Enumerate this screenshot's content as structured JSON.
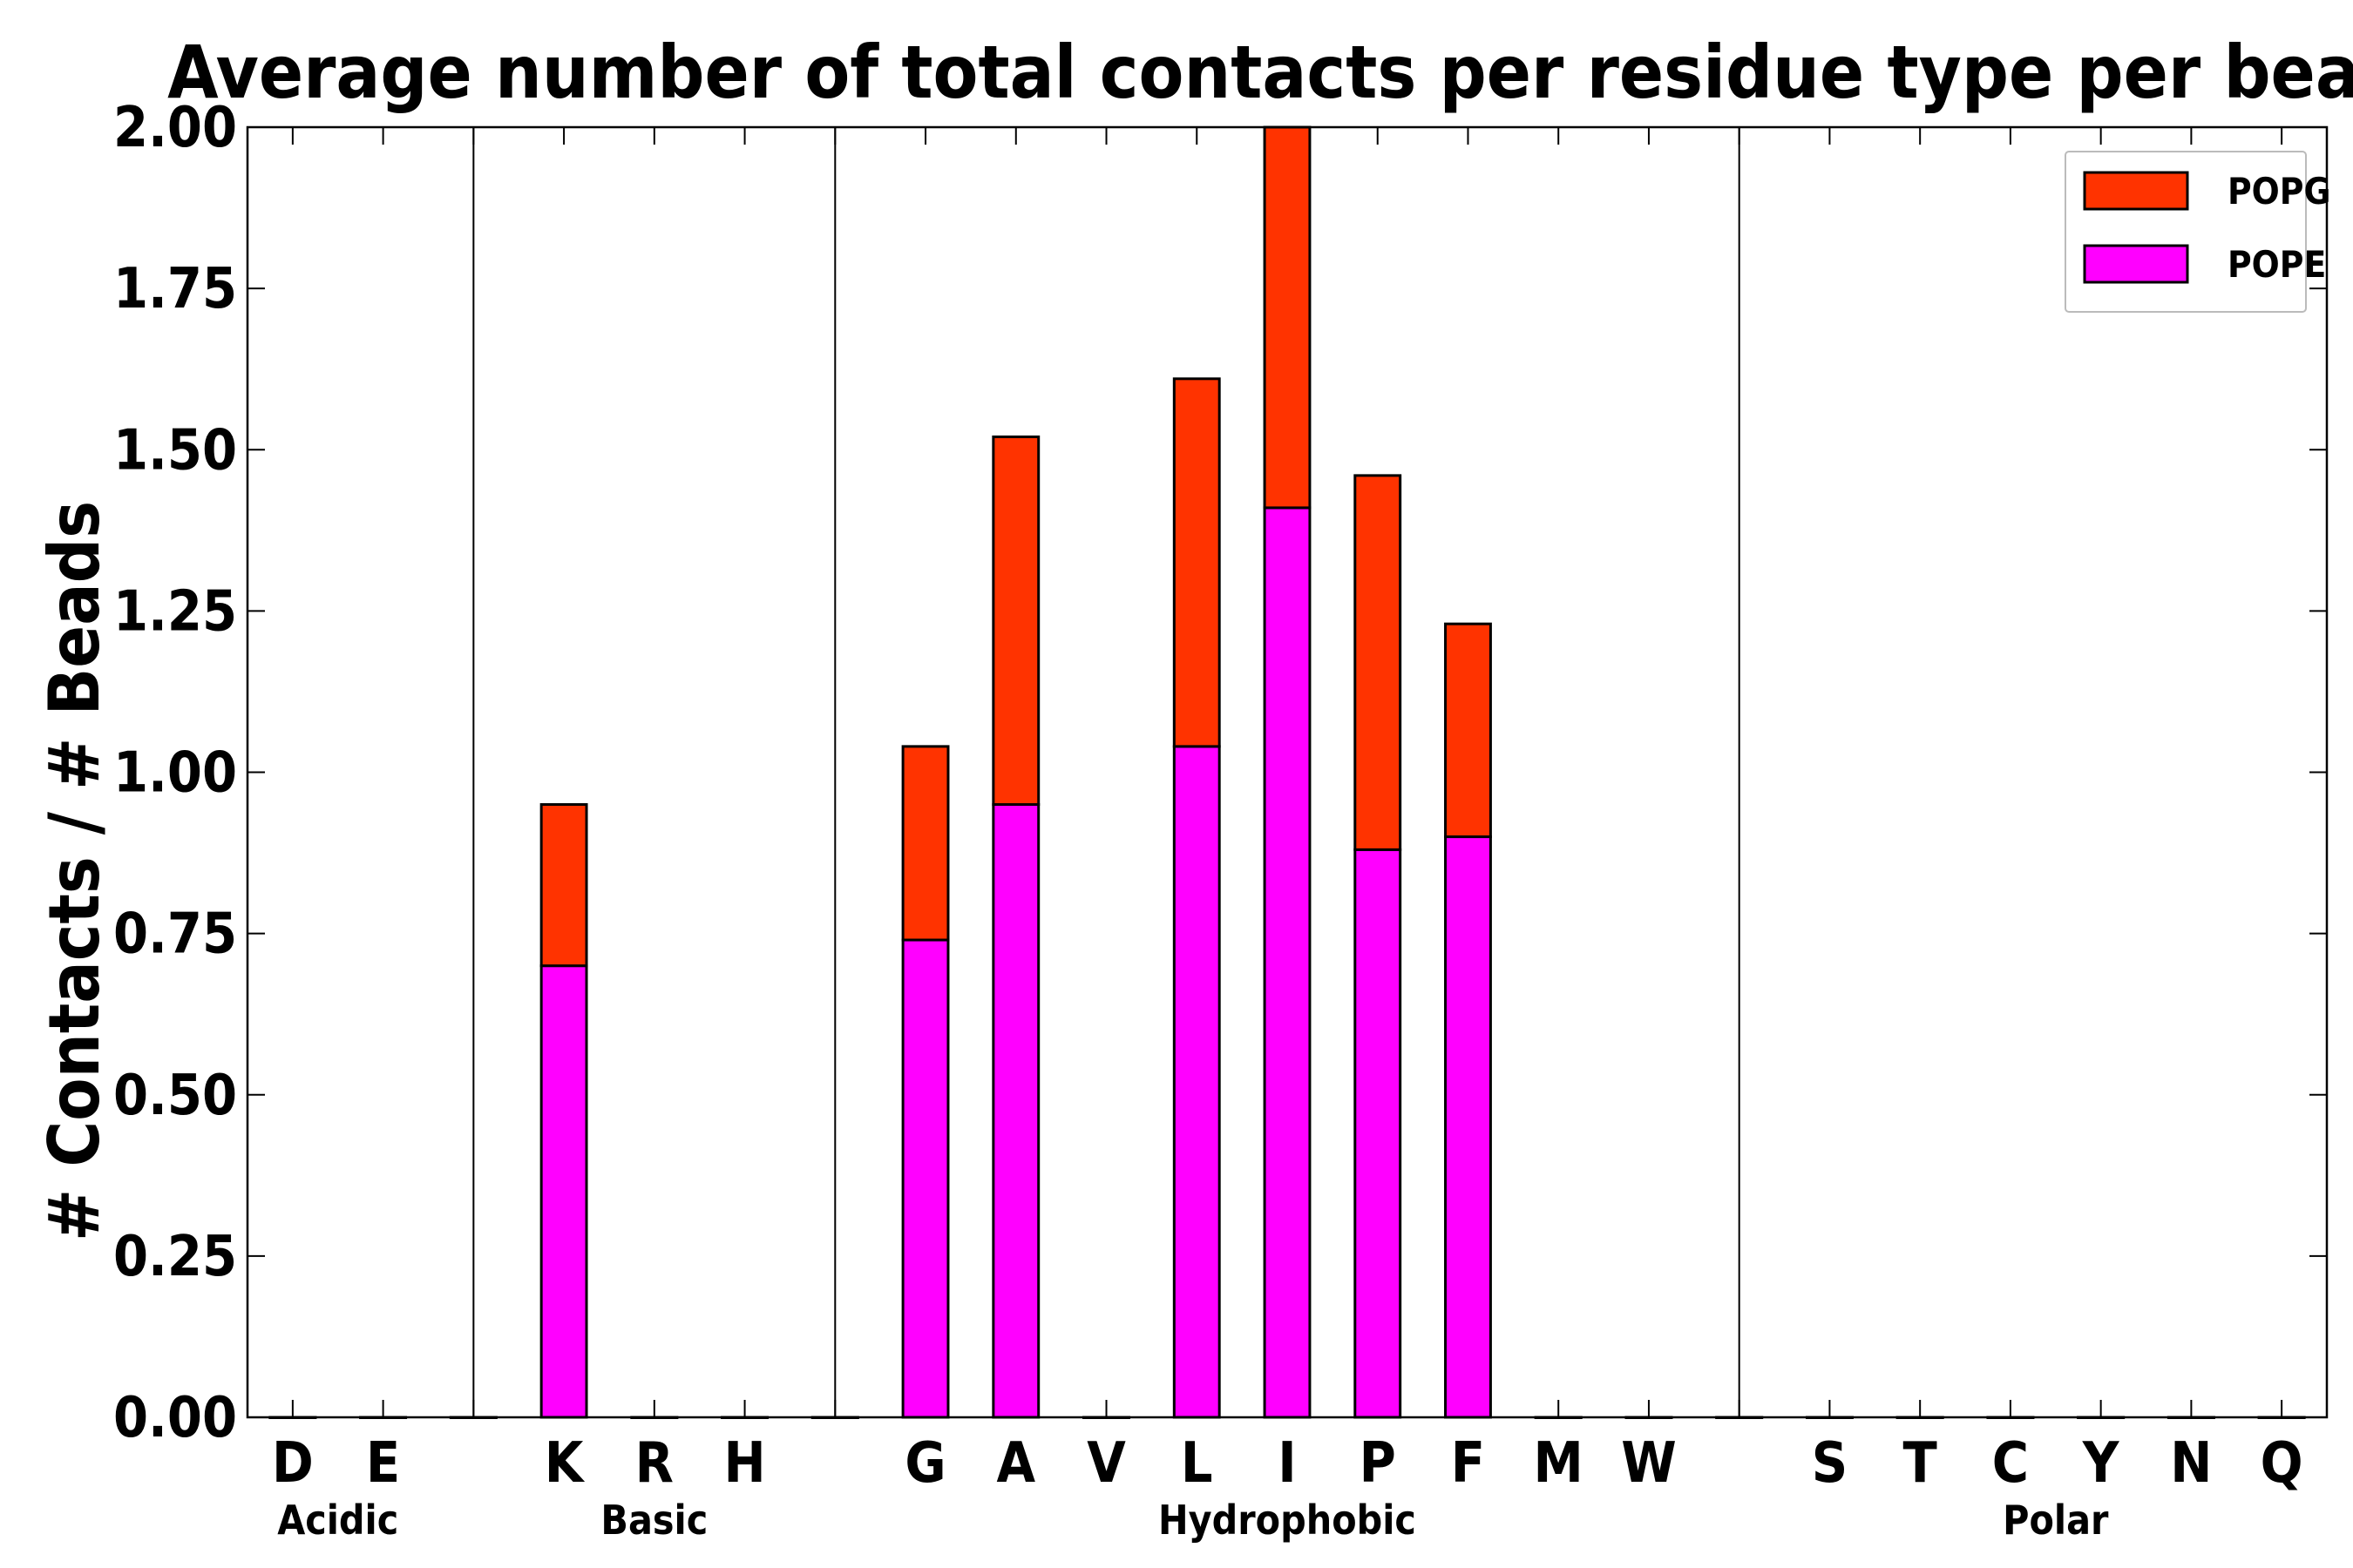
{
  "chart_data": {
    "type": "bar",
    "stacked": true,
    "title": "Average number of total contacts per residue type per bead",
    "xlabel": "",
    "ylabel": "# Contacts / # Beads",
    "ylim": [
      0,
      2.0
    ],
    "yticks": [
      "0.00",
      "0.25",
      "0.50",
      "0.75",
      "1.00",
      "1.25",
      "1.50",
      "1.75",
      "2.00"
    ],
    "yticks_values": [
      0,
      0.25,
      0.5,
      0.75,
      1.0,
      1.25,
      1.5,
      1.75,
      2.0
    ],
    "categories": [
      "D",
      "E",
      "",
      "K",
      "R",
      "H",
      "",
      "G",
      "A",
      "V",
      "L",
      "I",
      "P",
      "F",
      "M",
      "W",
      "",
      "S",
      "T",
      "C",
      "Y",
      "N",
      "Q"
    ],
    "groups": [
      {
        "name": "Acidic",
        "members": [
          "D",
          "E"
        ]
      },
      {
        "name": "Basic",
        "members": [
          "K",
          "R",
          "H"
        ]
      },
      {
        "name": "Hydrophobic",
        "members": [
          "G",
          "A",
          "V",
          "L",
          "I",
          "P",
          "F",
          "M",
          "W"
        ]
      },
      {
        "name": "Polar",
        "members": [
          "S",
          "T",
          "C",
          "Y",
          "N",
          "Q"
        ]
      }
    ],
    "series": [
      {
        "name": "POPE",
        "color": "#ff00ff",
        "values": [
          0,
          0,
          0,
          0.7,
          0,
          0,
          0,
          0.74,
          0.95,
          0,
          1.04,
          1.41,
          0.88,
          0.9,
          0,
          0,
          0,
          0,
          0,
          0,
          0,
          0,
          0
        ]
      },
      {
        "name": "POPG",
        "color": "#ff3300",
        "values": [
          0,
          0,
          0,
          0.25,
          0,
          0,
          0,
          0.3,
          0.57,
          0,
          0.57,
          0.59,
          0.58,
          0.33,
          0,
          0,
          0,
          0,
          0,
          0,
          0,
          0,
          0
        ]
      }
    ],
    "legend": {
      "placement": "top-right",
      "entries": [
        "POPG",
        "POPE"
      ]
    },
    "grid": false
  }
}
